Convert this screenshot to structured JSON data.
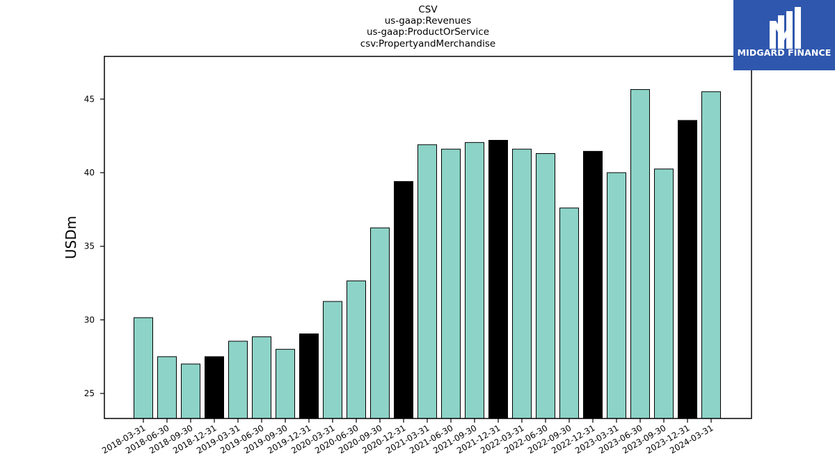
{
  "chart_data": {
    "type": "bar",
    "title_lines": [
      "CSV",
      "us-gaap:Revenues",
      "us-gaap:ProductOrService",
      "csv:PropertyandMerchandise"
    ],
    "xlabel": "",
    "ylabel": "USDm",
    "ylim": [
      23.3,
      47.9
    ],
    "yticks": [
      25,
      30,
      35,
      40,
      45
    ],
    "grid": false,
    "categories": [
      "2018-03-31",
      "2018-06-30",
      "2018-09-30",
      "2018-12-31",
      "2019-03-31",
      "2019-06-30",
      "2019-09-30",
      "2019-12-31",
      "2020-03-31",
      "2020-06-30",
      "2020-09-30",
      "2020-12-31",
      "2021-03-31",
      "2021-06-30",
      "2021-09-30",
      "2021-12-31",
      "2022-03-31",
      "2022-06-30",
      "2022-09-30",
      "2022-12-31",
      "2023-03-31",
      "2023-06-30",
      "2023-09-30",
      "2023-12-31",
      "2024-03-31"
    ],
    "values": [
      30.15,
      27.5,
      27.0,
      27.5,
      28.55,
      28.85,
      28.0,
      29.05,
      31.25,
      32.65,
      36.25,
      39.4,
      41.9,
      41.6,
      42.05,
      42.2,
      41.6,
      41.3,
      37.6,
      41.45,
      40.0,
      45.65,
      40.25,
      43.55,
      45.5
    ],
    "colors": {
      "quarter": "#8dd3c7",
      "year_end": "#000000",
      "edge": "#000000"
    },
    "highlight_categories": [
      "2018-12-31",
      "2019-12-31",
      "2020-12-31",
      "2021-12-31",
      "2022-12-31",
      "2023-12-31"
    ]
  },
  "logo": {
    "text": "MIDGARD FINANCE",
    "background": "#2f57ad"
  }
}
